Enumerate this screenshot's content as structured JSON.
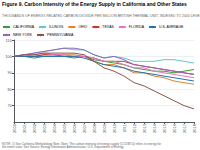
{
  "chart_data": {
    "type": "line",
    "title": "Figure 9. Carbon Intensity of the Energy Supply in California and Other States",
    "subtitle": "THOUSANDS OF ENERGY-RELATED CARBON DIOXIDE PER MILLION BRITISH THERMAL UNIT, INDEXED TO 2000 LEVELS",
    "annotations": [
      "NOTE: 1) See California Methodology Note. Note: The carbon intensity of energy supply (CO2/BTU) refers to energy for the entire state. See Source: Energy Information Administration, U.S. Department of Energy."
    ],
    "x": [
      2000,
      2001,
      2002,
      2003,
      2004,
      2005,
      2006,
      2007,
      2008,
      2009,
      2010,
      2011,
      2012,
      2013,
      2014,
      2015,
      2016,
      2017,
      2018
    ],
    "series": [
      {
        "name": "CALIFORNIA",
        "color": "#3a9c3a",
        "values": [
          100,
          100,
          99,
          100,
          100,
          100,
          99,
          100,
          98,
          97,
          96,
          95,
          93,
          92,
          91,
          91,
          90,
          91,
          92
        ]
      },
      {
        "name": "ILLINOIS",
        "color": "#5bc8d4",
        "values": [
          100,
          101,
          102,
          103,
          104,
          105,
          104,
          104,
          101,
          99,
          100,
          99,
          97,
          97,
          97,
          98,
          98,
          97,
          96
        ]
      },
      {
        "name": "OHIO",
        "color": "#e08030",
        "values": [
          100,
          101,
          100,
          101,
          101,
          101,
          101,
          100,
          97,
          95,
          95,
          93,
          90,
          90,
          88,
          87,
          85,
          84,
          83
        ]
      },
      {
        "name": "TEXAS",
        "color": "#cc3333",
        "values": [
          100,
          100,
          100,
          101,
          101,
          100,
          100,
          100,
          99,
          97,
          97,
          97,
          95,
          94,
          93,
          92,
          91,
          90,
          89
        ]
      },
      {
        "name": "FLORIDA",
        "color": "#e377c2",
        "values": [
          100,
          101,
          101,
          102,
          101,
          101,
          100,
          100,
          99,
          97,
          97,
          95,
          93,
          93,
          91,
          90,
          89,
          88,
          87
        ]
      },
      {
        "name": "U.S. AVERAGE",
        "color": "#1f77b4",
        "values": [
          100,
          100,
          100,
          100,
          100,
          100,
          100,
          99,
          97,
          95,
          94,
          93,
          91,
          90,
          89,
          88,
          87,
          86,
          85
        ]
      },
      {
        "name": "NEW YORK",
        "color": "#9467bd",
        "values": [
          100,
          101,
          102,
          103,
          104,
          105,
          105,
          104,
          101,
          99,
          100,
          98,
          95,
          94,
          93,
          92,
          91,
          90,
          89
        ]
      },
      {
        "name": "PENNSYLVANIA",
        "color": "#8c564b",
        "values": [
          100,
          101,
          101,
          102,
          102,
          102,
          102,
          101,
          97,
          93,
          91,
          88,
          84,
          82,
          79,
          76,
          73,
          70,
          68
        ]
      }
    ],
    "xlim": [
      2000,
      2018
    ],
    "xticks": [
      2000,
      2001,
      2002,
      2003,
      2004,
      2005,
      2006,
      2007,
      2008,
      2009,
      2010,
      2011,
      2012,
      2013,
      2014,
      2015,
      2016,
      2017,
      2018
    ],
    "ylim": [
      60,
      110
    ],
    "yticks": [
      70,
      80,
      90,
      100,
      110
    ],
    "grid": true,
    "legend": "top"
  }
}
